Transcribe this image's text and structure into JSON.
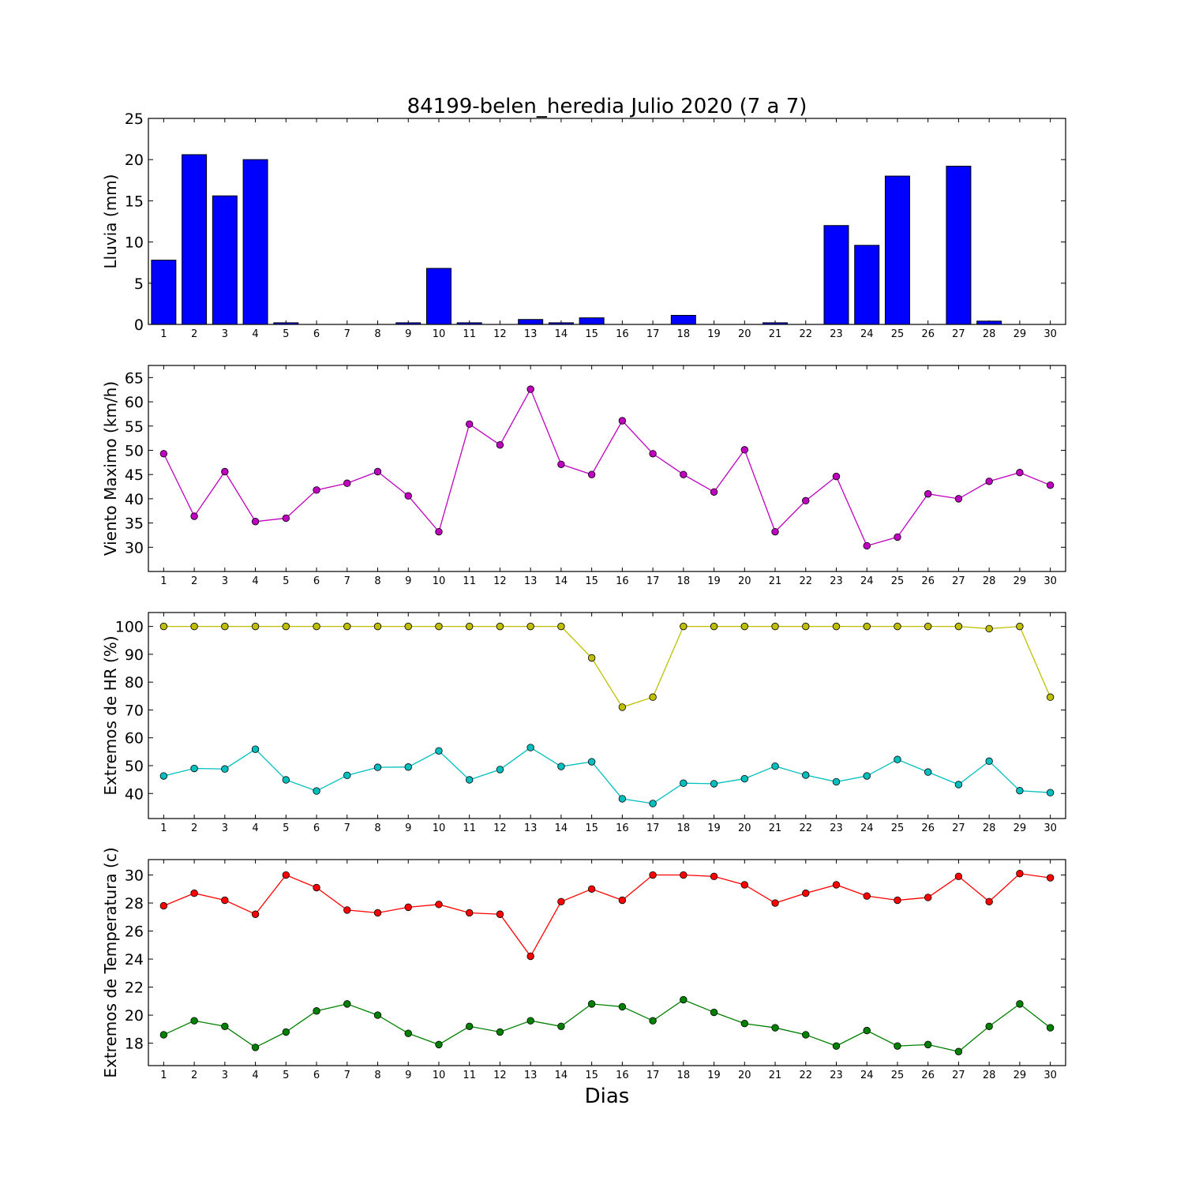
{
  "chart_data": [
    {
      "id": "lluvia",
      "type": "bar",
      "title": "84199-belen_heredia Julio 2020  (7 a 7)",
      "ylabel": "Lluvia (mm)",
      "xlabel": "",
      "ylim": [
        0,
        25
      ],
      "yticks": [
        "0",
        "5",
        "10",
        "15",
        "20",
        "25"
      ],
      "categories": [
        "1",
        "2",
        "3",
        "4",
        "5",
        "6",
        "7",
        "8",
        "9",
        "10",
        "11",
        "12",
        "13",
        "14",
        "15",
        "16",
        "17",
        "18",
        "19",
        "20",
        "21",
        "22",
        "23",
        "24",
        "25",
        "26",
        "27",
        "28",
        "29",
        "30"
      ],
      "series": [
        {
          "color": "#0000ff",
          "values": [
            7.8,
            20.6,
            15.6,
            20.0,
            0.2,
            0.0,
            0.0,
            0.0,
            0.2,
            6.8,
            0.2,
            0.0,
            0.6,
            0.2,
            0.8,
            0.0,
            0.0,
            1.1,
            0.0,
            0.0,
            0.2,
            0.0,
            12.0,
            9.6,
            18.0,
            0.0,
            19.2,
            0.4,
            0.0,
            0.0
          ]
        }
      ]
    },
    {
      "id": "viento",
      "type": "line",
      "title": "",
      "ylabel": "Viento Maximo (km/h)",
      "xlabel": "",
      "ylim": [
        25,
        67.5
      ],
      "yticks": [
        "30",
        "35",
        "40",
        "45",
        "50",
        "55",
        "60",
        "65"
      ],
      "categories": [
        "1",
        "2",
        "3",
        "4",
        "5",
        "6",
        "7",
        "8",
        "9",
        "10",
        "11",
        "12",
        "13",
        "14",
        "15",
        "16",
        "17",
        "18",
        "19",
        "20",
        "21",
        "22",
        "23",
        "24",
        "25",
        "26",
        "27",
        "28",
        "29",
        "30"
      ],
      "series": [
        {
          "color": "#bf00bf",
          "values": [
            49.3,
            36.4,
            45.6,
            35.3,
            36.0,
            41.8,
            43.2,
            45.6,
            40.6,
            33.2,
            55.4,
            51.1,
            62.6,
            47.1,
            45.0,
            56.1,
            49.3,
            45.0,
            41.4,
            50.1,
            33.2,
            39.6,
            44.6,
            30.3,
            32.1,
            41.0,
            40.0,
            43.6,
            45.4,
            42.8
          ]
        }
      ]
    },
    {
      "id": "hr",
      "type": "line",
      "title": "",
      "ylabel": "Extremos de HR (%)",
      "xlabel": "",
      "ylim": [
        31,
        105
      ],
      "yticks": [
        "40",
        "50",
        "60",
        "70",
        "80",
        "90",
        "100"
      ],
      "categories": [
        "1",
        "2",
        "3",
        "4",
        "5",
        "6",
        "7",
        "8",
        "9",
        "10",
        "11",
        "12",
        "13",
        "14",
        "15",
        "16",
        "17",
        "18",
        "19",
        "20",
        "21",
        "22",
        "23",
        "24",
        "25",
        "26",
        "27",
        "28",
        "29",
        "30"
      ],
      "series": [
        {
          "color": "#bfbf00",
          "values": [
            100,
            100,
            100,
            100,
            100,
            100,
            100,
            100,
            100,
            100,
            100,
            100,
            100,
            100,
            88.7,
            71.0,
            74.6,
            100,
            100,
            100,
            100,
            100,
            100,
            100,
            100,
            100,
            100,
            99.2,
            100,
            74.6
          ]
        },
        {
          "color": "#00bfbf",
          "values": [
            46.3,
            49.0,
            48.8,
            55.9,
            44.9,
            40.9,
            46.5,
            49.4,
            49.5,
            55.3,
            44.9,
            48.6,
            56.5,
            49.7,
            51.4,
            38.1,
            36.4,
            43.7,
            43.5,
            45.3,
            49.8,
            46.6,
            44.2,
            46.3,
            52.2,
            47.7,
            43.2,
            51.6,
            41.0,
            40.3
          ]
        }
      ]
    },
    {
      "id": "temperatura",
      "type": "line",
      "title": "",
      "ylabel": "Extremos de Temperatura (c)",
      "xlabel": "Dias",
      "ylim": [
        16.4,
        31.1
      ],
      "yticks": [
        "18",
        "20",
        "22",
        "24",
        "26",
        "28",
        "30"
      ],
      "categories": [
        "1",
        "2",
        "3",
        "4",
        "5",
        "6",
        "7",
        "8",
        "9",
        "10",
        "11",
        "12",
        "13",
        "14",
        "15",
        "16",
        "17",
        "18",
        "19",
        "20",
        "21",
        "22",
        "23",
        "24",
        "25",
        "26",
        "27",
        "28",
        "29",
        "30"
      ],
      "series": [
        {
          "color": "#ff0000",
          "values": [
            27.8,
            28.7,
            28.2,
            27.2,
            30.0,
            29.1,
            27.5,
            27.3,
            27.7,
            27.9,
            27.3,
            27.2,
            24.2,
            28.1,
            29.0,
            28.2,
            30.0,
            30.0,
            29.9,
            29.3,
            28.0,
            28.7,
            29.3,
            28.5,
            28.2,
            28.4,
            29.9,
            28.1,
            30.1,
            29.8
          ]
        },
        {
          "color": "#008000",
          "values": [
            18.6,
            19.6,
            19.2,
            17.7,
            18.8,
            20.3,
            20.8,
            20.0,
            18.7,
            17.9,
            19.2,
            18.8,
            19.6,
            19.2,
            20.8,
            20.6,
            19.6,
            21.1,
            20.2,
            19.4,
            19.1,
            18.6,
            17.8,
            18.9,
            17.8,
            17.9,
            17.4,
            19.2,
            20.8,
            19.1
          ]
        }
      ]
    }
  ]
}
